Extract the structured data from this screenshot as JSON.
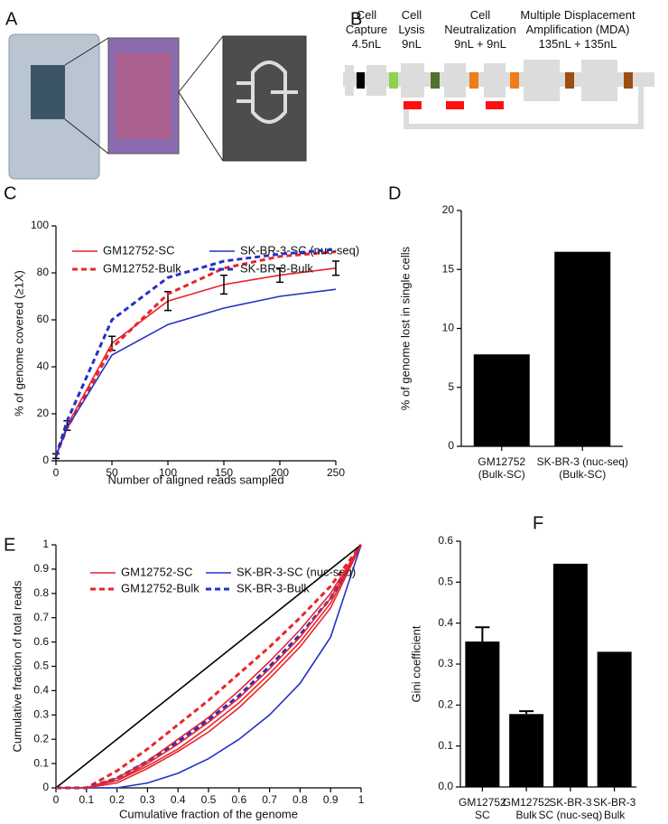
{
  "panel_labels": [
    "A",
    "B",
    "C",
    "D",
    "E",
    "F"
  ],
  "diagram": {
    "stages": [
      "Cell\nCapture\n4.5nL",
      "Cell\nLysis\n9nL",
      "Cell\nNeutralization\n9nL  +  9nL",
      "Multiple Displacement\nAmplification (MDA)\n135nL  +  135nL"
    ]
  },
  "chart_data": [
    {
      "type": "line",
      "x": [
        0,
        10,
        50,
        100,
        150,
        200,
        250
      ],
      "xlim": [
        0,
        250
      ],
      "xticks": [
        0,
        50,
        100,
        150,
        200,
        250
      ],
      "ylim": [
        0,
        100
      ],
      "yticks": [
        0,
        20,
        40,
        60,
        80,
        100
      ],
      "xlabel": "Number of aligned reads sampled",
      "ylabel": "% of genome covered (≥1X)",
      "series": [
        {
          "name": "GM12752-SC",
          "color": "#e8242a",
          "dash": false,
          "values": [
            2,
            15,
            50,
            68,
            75,
            79,
            82
          ],
          "errors": [
            1,
            2,
            3,
            4,
            4,
            3,
            3
          ]
        },
        {
          "name": "GM12752-Bulk",
          "color": "#e8242a",
          "dash": true,
          "values": [
            2,
            14,
            48,
            71,
            82,
            87,
            89
          ]
        },
        {
          "name": "SK-BR-3-SC (nuc-seq)",
          "color": "#2430c8",
          "dash": false,
          "values": [
            2,
            14,
            45,
            58,
            65,
            70,
            73
          ]
        },
        {
          "name": "SK-BR-3-Bulk",
          "color": "#2430c8",
          "dash": true,
          "values": [
            2,
            17,
            60,
            78,
            85,
            88,
            90
          ]
        }
      ]
    },
    {
      "type": "bar",
      "categories": [
        "GM12752\n(Bulk-SC)",
        "SK-BR-3 (nuc-seq)\n(Bulk-SC)"
      ],
      "values": [
        7.8,
        16.5
      ],
      "color": "#000000",
      "ylim": [
        0,
        20
      ],
      "yticks": [
        0,
        5,
        10,
        15,
        20
      ],
      "ylabel": "% of genome lost in single cells"
    },
    {
      "type": "line",
      "x": [
        0,
        0.1,
        0.2,
        0.3,
        0.4,
        0.5,
        0.6,
        0.7,
        0.8,
        0.9,
        1
      ],
      "xlim": [
        0,
        1
      ],
      "xticks": [
        0,
        0.1,
        0.2,
        0.3,
        0.4,
        0.5,
        0.6,
        0.7,
        0.8,
        0.9,
        1
      ],
      "ylim": [
        0,
        1
      ],
      "yticks": [
        0,
        0.1,
        0.2,
        0.3,
        0.4,
        0.5,
        0.6,
        0.7,
        0.8,
        0.9,
        1
      ],
      "xlabel": "Cumulative fraction of the genome",
      "ylabel": "Cumulative fraction of total reads",
      "series": [
        {
          "name": "GM12752-SC",
          "color": "#e8242a",
          "dash": false,
          "values": [
            0,
            0,
            0.03,
            0.09,
            0.16,
            0.25,
            0.35,
            0.47,
            0.6,
            0.76,
            1
          ]
        },
        {
          "name": "GM12752-Bulk",
          "color": "#e8242a",
          "dash": true,
          "values": [
            0,
            0,
            0.07,
            0.16,
            0.26,
            0.36,
            0.47,
            0.58,
            0.7,
            0.83,
            1
          ]
        },
        {
          "name": "SK-BR-3-SC (nuc-seq)",
          "color": "#2430c8",
          "dash": false,
          "values": [
            0,
            0,
            0,
            0.02,
            0.06,
            0.12,
            0.2,
            0.3,
            0.43,
            0.62,
            1
          ]
        },
        {
          "name": "SK-BR-3-Bulk",
          "color": "#2430c8",
          "dash": true,
          "values": [
            0,
            0,
            0.04,
            0.11,
            0.19,
            0.28,
            0.38,
            0.5,
            0.63,
            0.78,
            1
          ]
        },
        {
          "color": "#000000",
          "dash": false,
          "values": [
            0,
            0.1,
            0.2,
            0.3,
            0.4,
            0.5,
            0.6,
            0.7,
            0.8,
            0.9,
            1
          ]
        },
        {
          "color": "#e8242a",
          "dash": false,
          "values": [
            0,
            0,
            0.02,
            0.08,
            0.15,
            0.23,
            0.33,
            0.45,
            0.58,
            0.74,
            1
          ]
        },
        {
          "color": "#e8242a",
          "dash": false,
          "values": [
            0,
            0,
            0.03,
            0.1,
            0.18,
            0.27,
            0.37,
            0.49,
            0.62,
            0.78,
            1
          ]
        },
        {
          "color": "#e8242a",
          "dash": false,
          "values": [
            0,
            0,
            0.04,
            0.11,
            0.2,
            0.29,
            0.4,
            0.52,
            0.65,
            0.8,
            1
          ]
        }
      ]
    },
    {
      "type": "bar",
      "categories": [
        "GM12752\nSC",
        "GM12752\nBulk",
        "SK-BR-3\nSC (nuc-seq)",
        "SK-BR-3\nBulk"
      ],
      "values": [
        0.355,
        0.178,
        0.545,
        0.33
      ],
      "errors": [
        0.035,
        0.007,
        null,
        null
      ],
      "color": "#000000",
      "ylim": [
        0,
        0.6
      ],
      "yticks": [
        {
          "value": 0,
          "label": "0.0"
        },
        0.1,
        0.2,
        0.3,
        0.4,
        0.5,
        0.6
      ],
      "ylabel": "Gini coefficient"
    }
  ]
}
